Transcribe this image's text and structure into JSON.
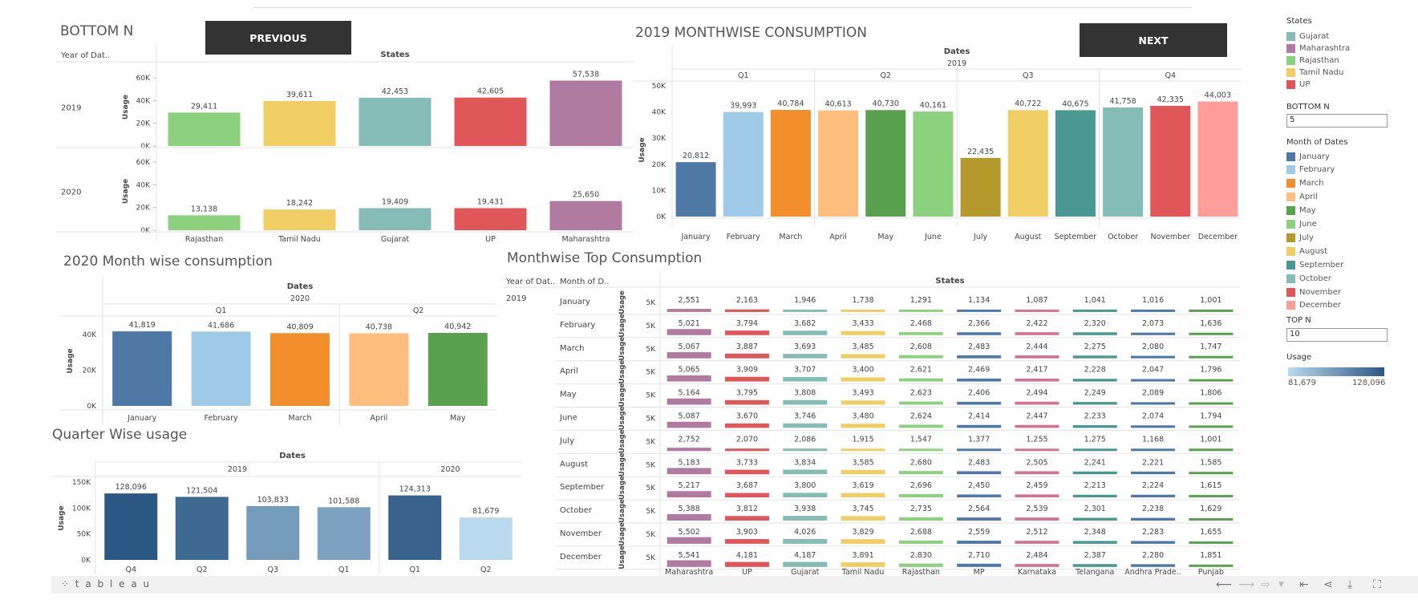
{
  "buttons": {
    "previous": "PREVIOUS",
    "next": "NEXT"
  },
  "titles": {
    "bottom_n": "BOTTOM N",
    "monthwise_2019": "2019 MONTHWISE CONSUMPTION",
    "month_2020": "2020 Month wise consumption",
    "monthwise_top": "Monthwise Top Consumption",
    "quarter": "Quarter Wise usage"
  },
  "legend": {
    "states_title": "States",
    "states": [
      {
        "name": "Gujarat",
        "color": "#86bcb6"
      },
      {
        "name": "Maharashtra",
        "color": "#b07aa1"
      },
      {
        "name": "Rajasthan",
        "color": "#8cd17d"
      },
      {
        "name": "Tamil Nadu",
        "color": "#f1ce63"
      },
      {
        "name": "UP",
        "color": "#e15759"
      }
    ],
    "bottom_n_label": "BOTTOM N",
    "bottom_n_value": "5",
    "month_title": "Month of Dates",
    "months": [
      {
        "name": "January",
        "color": "#4e79a7"
      },
      {
        "name": "February",
        "color": "#a0cbe8"
      },
      {
        "name": "March",
        "color": "#f28e2b"
      },
      {
        "name": "April",
        "color": "#ffbe7d"
      },
      {
        "name": "May",
        "color": "#59a14f"
      },
      {
        "name": "June",
        "color": "#8cd17d"
      },
      {
        "name": "July",
        "color": "#b6992d"
      },
      {
        "name": "August",
        "color": "#f1ce63"
      },
      {
        "name": "September",
        "color": "#499894"
      },
      {
        "name": "October",
        "color": "#86bcb6"
      },
      {
        "name": "November",
        "color": "#e15759"
      },
      {
        "name": "December",
        "color": "#ff9d9a"
      }
    ],
    "top_n_label": "TOP N",
    "top_n_value": "10",
    "usage_title": "Usage",
    "usage_min": "81,679",
    "usage_max": "128,096"
  },
  "footer": {
    "logo": "⁘ t a b l e a u"
  },
  "chart_data": [
    {
      "id": "bottom_n",
      "type": "bar",
      "header_row": "Year of Dat..",
      "header_col": "States",
      "ylabel": "Usage",
      "ylim": [
        0,
        60000
      ],
      "yticks": [
        "60K",
        "40K",
        "20K",
        "0K"
      ],
      "rows": [
        {
          "year": "2019",
          "categories": [
            "Rajasthan",
            "Tamil Nadu",
            "Gujarat",
            "UP",
            "Maharashtra"
          ],
          "values": [
            29411,
            39611,
            42453,
            42605,
            57538
          ],
          "labels": [
            "29,411",
            "39,611",
            "42,453",
            "42,605",
            "57,538"
          ]
        },
        {
          "year": "2020",
          "categories": [
            "Rajasthan",
            "Tamil Nadu",
            "Gujarat",
            "UP",
            "Maharashtra"
          ],
          "values": [
            13138,
            18242,
            19409,
            19431,
            25650
          ],
          "labels": [
            "13,138",
            "18,242",
            "19,409",
            "19,431",
            "25,650"
          ]
        }
      ],
      "xlabels": [
        "Rajasthan",
        "Tamil Nadu",
        "Gujarat",
        "UP",
        "Maharashtra"
      ]
    },
    {
      "id": "monthwise_2019",
      "type": "bar",
      "header": "Dates",
      "year": "2019",
      "quarters": [
        "Q1",
        "Q2",
        "Q3",
        "Q4"
      ],
      "ylabel": "Usage",
      "ylim": [
        0,
        50000
      ],
      "yticks": [
        "50K",
        "40K",
        "30K",
        "20K",
        "10K",
        "0K"
      ],
      "categories": [
        "January",
        "February",
        "March",
        "April",
        "May",
        "June",
        "July",
        "August",
        "September",
        "October",
        "November",
        "December"
      ],
      "values": [
        20812,
        39993,
        40784,
        40613,
        40730,
        40161,
        22435,
        40722,
        40675,
        41758,
        42335,
        44003
      ],
      "labels": [
        "20,812",
        "39,993",
        "40,784",
        "40,613",
        "40,730",
        "40,161",
        "22,435",
        "40,722",
        "40,675",
        "41,758",
        "42,335",
        "44,003"
      ]
    },
    {
      "id": "month_2020",
      "type": "bar",
      "header": "Dates",
      "year": "2020",
      "quarters": [
        "Q1",
        "Q2"
      ],
      "ylabel": "Usage",
      "ylim": [
        0,
        50000
      ],
      "yticks": [
        "40K",
        "20K",
        "0K"
      ],
      "categories": [
        "January",
        "February",
        "March",
        "April",
        "May"
      ],
      "values": [
        41819,
        41686,
        40809,
        40738,
        40942
      ],
      "labels": [
        "41,819",
        "41,686",
        "40,809",
        "40,738",
        "40,942"
      ]
    },
    {
      "id": "quarter",
      "type": "bar",
      "header": "Dates",
      "years": [
        "2019",
        "2020"
      ],
      "ylabel": "Usage",
      "ylim": [
        0,
        150000
      ],
      "yticks": [
        "150K",
        "100K",
        "50K",
        "0K"
      ],
      "categories": [
        "Q4",
        "Q2",
        "Q3",
        "Q1",
        "Q1",
        "Q2"
      ],
      "values": [
        128096,
        121504,
        103833,
        101588,
        124313,
        81679
      ],
      "labels": [
        "128,096",
        "121,504",
        "103,833",
        "101,588",
        "124,313",
        "81,679"
      ]
    },
    {
      "id": "monthwise_top",
      "type": "bar",
      "header_year": "Year of Dat..",
      "header_month": "Month of D..",
      "header_states": "States",
      "year": "2019",
      "ylabel": "Usage",
      "ytick": "5K",
      "states": [
        "Maharashtra",
        "UP",
        "Gujarat",
        "Tamil Nadu",
        "Rajasthan",
        "MP",
        "Karnataka",
        "Telangana",
        "Andhra Prade..",
        "Punjab"
      ],
      "months": [
        "January",
        "February",
        "March",
        "April",
        "May",
        "June",
        "July",
        "August",
        "September",
        "October",
        "November",
        "December"
      ],
      "values": [
        [
          2551,
          2163,
          1946,
          1738,
          1291,
          1134,
          1087,
          1041,
          1016,
          1001
        ],
        [
          5021,
          3794,
          3682,
          3433,
          2468,
          2366,
          2422,
          2320,
          2073,
          1636
        ],
        [
          5067,
          3887,
          3693,
          3485,
          2608,
          2483,
          2444,
          2275,
          2080,
          1747
        ],
        [
          5065,
          3909,
          3707,
          3400,
          2621,
          2469,
          2417,
          2228,
          2047,
          1796
        ],
        [
          5164,
          3795,
          3808,
          3493,
          2623,
          2406,
          2494,
          2249,
          2089,
          1806
        ],
        [
          5087,
          3670,
          3746,
          3480,
          2624,
          2414,
          2447,
          2233,
          2074,
          1794
        ],
        [
          2752,
          2070,
          2086,
          1915,
          1547,
          1377,
          1255,
          1275,
          1168,
          1001
        ],
        [
          5183,
          3733,
          3834,
          3585,
          2680,
          2483,
          2505,
          2241,
          2221,
          1585
        ],
        [
          5217,
          3687,
          3800,
          3619,
          2696,
          2450,
          2459,
          2213,
          2224,
          1615
        ],
        [
          5388,
          3812,
          3938,
          3745,
          2735,
          2564,
          2539,
          2301,
          2238,
          1629
        ],
        [
          5502,
          3903,
          4026,
          3829,
          2688,
          2559,
          2512,
          2348,
          2283,
          1655
        ],
        [
          5541,
          4181,
          4187,
          3891,
          2830,
          2710,
          2484,
          2387,
          2280,
          1851
        ]
      ],
      "labels": [
        [
          "2,551",
          "2,163",
          "1,946",
          "1,738",
          "1,291",
          "1,134",
          "1,087",
          "1,041",
          "1,016",
          "1,001"
        ],
        [
          "5,021",
          "3,794",
          "3,682",
          "3,433",
          "2,468",
          "2,366",
          "2,422",
          "2,320",
          "2,073",
          "1,636"
        ],
        [
          "5,067",
          "3,887",
          "3,693",
          "3,485",
          "2,608",
          "2,483",
          "2,444",
          "2,275",
          "2,080",
          "1,747"
        ],
        [
          "5,065",
          "3,909",
          "3,707",
          "3,400",
          "2,621",
          "2,469",
          "2,417",
          "2,228",
          "2,047",
          "1,796"
        ],
        [
          "5,164",
          "3,795",
          "3,808",
          "3,493",
          "2,623",
          "2,406",
          "2,494",
          "2,249",
          "2,089",
          "1,806"
        ],
        [
          "5,087",
          "3,670",
          "3,746",
          "3,480",
          "2,624",
          "2,414",
          "2,447",
          "2,233",
          "2,074",
          "1,794"
        ],
        [
          "2,752",
          "2,070",
          "2,086",
          "1,915",
          "1,547",
          "1,377",
          "1,255",
          "1,275",
          "1,168",
          "1,001"
        ],
        [
          "5,183",
          "3,733",
          "3,834",
          "3,585",
          "2,680",
          "2,483",
          "2,505",
          "2,241",
          "2,221",
          "1,585"
        ],
        [
          "5,217",
          "3,687",
          "3,800",
          "3,619",
          "2,696",
          "2,450",
          "2,459",
          "2,213",
          "2,224",
          "1,615"
        ],
        [
          "5,388",
          "3,812",
          "3,938",
          "3,745",
          "2,735",
          "2,564",
          "2,539",
          "2,301",
          "2,238",
          "1,629"
        ],
        [
          "5,502",
          "3,903",
          "4,026",
          "3,829",
          "2,688",
          "2,559",
          "2,512",
          "2,348",
          "2,283",
          "1,655"
        ],
        [
          "5,541",
          "4,181",
          "4,187",
          "3,891",
          "2,830",
          "2,710",
          "2,484",
          "2,387",
          "2,280",
          "1,851"
        ]
      ],
      "state_colors": [
        "#b07aa1",
        "#e15759",
        "#86bcb6",
        "#f1ce63",
        "#8cd17d",
        "#4e79a7",
        "#d37295",
        "#499894",
        "#4e79a7",
        "#59a14f"
      ]
    }
  ]
}
